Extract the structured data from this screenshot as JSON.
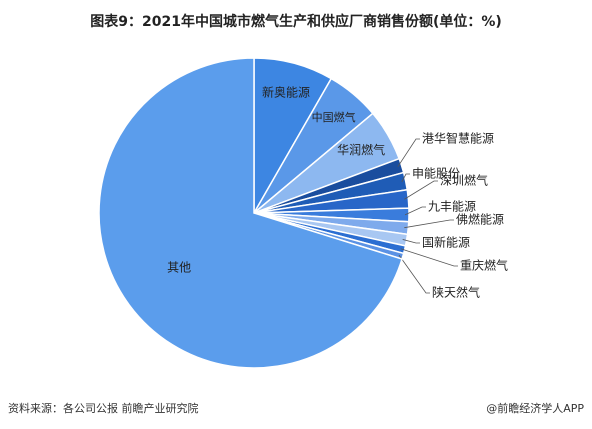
{
  "chart_data": {
    "type": "pie",
    "title": "图表9：2021年中国城市燃气生产和供应厂商销售份额(单位：%)",
    "categories": [
      "新奥能源",
      "中国燃气",
      "华润燃气",
      "港华智慧能源",
      "申能股份",
      "深圳燃气",
      "九丰能源",
      "佛燃能源",
      "国新能源",
      "重庆燃气",
      "陕天然气",
      "其他"
    ],
    "values": [
      8.3,
      5.6,
      5.4,
      1.5,
      1.8,
      1.9,
      1.4,
      1.3,
      1.2,
      0.8,
      0.6,
      70.2
    ],
    "colors": [
      "#3d86e2",
      "#5a98e8",
      "#8db8f0",
      "#1a4d9e",
      "#1f5cb6",
      "#2866c8",
      "#3a7cdc",
      "#7eaaec",
      "#a8c7f2",
      "#2b6ed2",
      "#5b92e4",
      "#5b9dec"
    ],
    "source": "资料来源：各公司公报 前瞻产业研究院",
    "credit": "@前瞻经济学人APP"
  }
}
